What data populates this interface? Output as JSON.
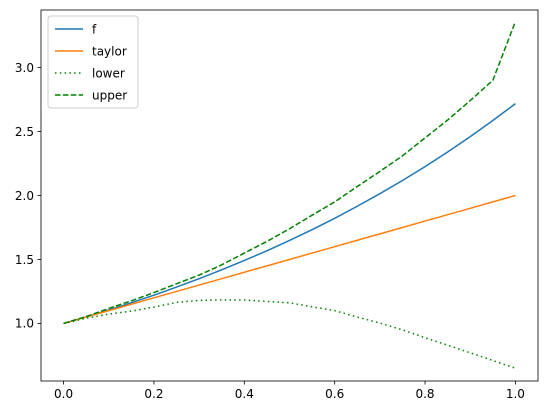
{
  "chart_data": {
    "type": "line",
    "title": "",
    "xlabel": "",
    "ylabel": "",
    "xlim": [
      -0.05,
      1.05
    ],
    "ylim": [
      0.55,
      3.45
    ],
    "xticks": [
      0.0,
      0.2,
      0.4,
      0.6,
      0.8,
      1.0
    ],
    "xtick_labels": [
      "0.0",
      "0.2",
      "0.4",
      "0.6",
      "0.8",
      "1.0"
    ],
    "yticks": [
      1.0,
      1.5,
      2.0,
      2.5,
      3.0
    ],
    "ytick_labels": [
      "1.0",
      "1.5",
      "2.0",
      "2.5",
      "3.0"
    ],
    "grid": false,
    "legend_position": "top-left",
    "x": [
      0.0,
      0.05,
      0.1,
      0.15,
      0.2,
      0.25,
      0.3,
      0.35,
      0.4,
      0.45,
      0.5,
      0.55,
      0.6,
      0.65,
      0.7,
      0.75,
      0.8,
      0.85,
      0.9,
      0.95,
      1.0
    ],
    "series": [
      {
        "name": "f",
        "color": "#1f77b4",
        "style": "solid",
        "values": [
          1.0,
          1.051,
          1.105,
          1.162,
          1.221,
          1.284,
          1.35,
          1.419,
          1.492,
          1.568,
          1.649,
          1.733,
          1.822,
          1.916,
          2.014,
          2.117,
          2.226,
          2.34,
          2.46,
          2.586,
          2.718
        ]
      },
      {
        "name": "taylor",
        "color": "#ff7f0e",
        "style": "solid",
        "values": [
          1.0,
          1.05,
          1.1,
          1.15,
          1.2,
          1.25,
          1.3,
          1.35,
          1.4,
          1.45,
          1.5,
          1.55,
          1.6,
          1.65,
          1.7,
          1.75,
          1.8,
          1.85,
          1.9,
          1.95,
          2.0
        ]
      },
      {
        "name": "lower",
        "color": "#008000",
        "style": "dotted",
        "values": [
          1.0,
          1.041,
          1.073,
          1.096,
          1.128,
          1.164,
          1.18,
          1.184,
          1.183,
          1.172,
          1.161,
          1.13,
          1.1,
          1.05,
          1.003,
          0.95,
          0.888,
          0.83,
          0.77,
          0.71,
          0.65
        ]
      },
      {
        "name": "upper",
        "color": "#008000",
        "style": "dashed",
        "values": [
          1.0,
          1.054,
          1.117,
          1.177,
          1.241,
          1.31,
          1.378,
          1.458,
          1.55,
          1.641,
          1.74,
          1.846,
          1.95,
          2.07,
          2.188,
          2.31,
          2.45,
          2.59,
          2.742,
          2.9,
          3.36
        ]
      }
    ]
  }
}
